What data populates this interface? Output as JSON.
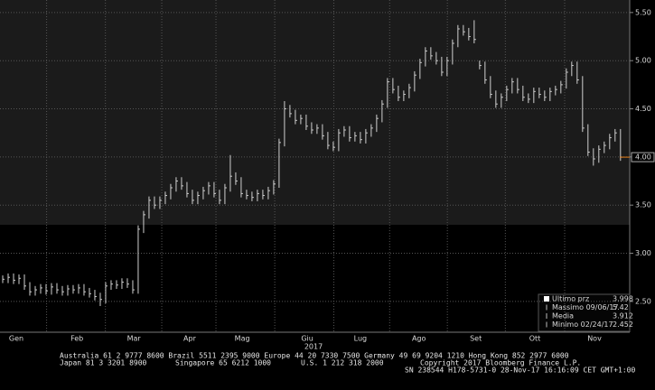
{
  "chart_data": {
    "type": "ohlc",
    "high": [
      2.77,
      2.79,
      2.79,
      2.78,
      2.78,
      2.7,
      2.66,
      2.68,
      2.68,
      2.69,
      2.69,
      2.66,
      2.67,
      2.67,
      2.68,
      2.68,
      2.64,
      2.62,
      2.59,
      2.7,
      2.72,
      2.72,
      2.74,
      2.74,
      2.72,
      3.29,
      3.44,
      3.59,
      3.59,
      3.59,
      3.64,
      3.72,
      3.79,
      3.79,
      3.74,
      3.66,
      3.64,
      3.69,
      3.74,
      3.74,
      3.66,
      3.72,
      4.02,
      3.84,
      3.79,
      3.66,
      3.64,
      3.66,
      3.66,
      3.69,
      3.76,
      4.19,
      4.58,
      4.54,
      4.49,
      4.44,
      4.44,
      4.36,
      4.34,
      4.34,
      4.26,
      4.16,
      4.29,
      4.32,
      4.32,
      4.26,
      4.26,
      4.29,
      4.34,
      4.44,
      4.59,
      4.82,
      4.82,
      4.74,
      4.69,
      4.76,
      4.89,
      5.02,
      5.14,
      5.14,
      5.09,
      5.04,
      5.04,
      5.22,
      5.37,
      5.37,
      5.34,
      5.42,
      5.0,
      4.99,
      4.84,
      4.69,
      4.66,
      4.74,
      4.82,
      4.82,
      4.74,
      4.66,
      4.72,
      4.72,
      4.69,
      4.72,
      4.74,
      4.79,
      4.92,
      4.99,
      4.99,
      4.84,
      4.34,
      4.09,
      4.12,
      4.16,
      4.24,
      4.29,
      4.29
    ],
    "low": [
      2.69,
      2.69,
      2.68,
      2.68,
      2.62,
      2.56,
      2.56,
      2.58,
      2.57,
      2.57,
      2.58,
      2.56,
      2.56,
      2.58,
      2.58,
      2.56,
      2.54,
      2.51,
      2.452,
      2.48,
      2.62,
      2.63,
      2.63,
      2.64,
      2.58,
      2.58,
      3.21,
      3.36,
      3.46,
      3.46,
      3.51,
      3.56,
      3.64,
      3.66,
      3.58,
      3.51,
      3.51,
      3.56,
      3.61,
      3.58,
      3.51,
      3.51,
      3.64,
      3.71,
      3.58,
      3.56,
      3.54,
      3.54,
      3.56,
      3.56,
      3.61,
      3.68,
      4.11,
      4.41,
      4.34,
      4.34,
      4.28,
      4.24,
      4.24,
      4.18,
      4.08,
      4.06,
      4.06,
      4.21,
      4.16,
      4.16,
      4.14,
      4.14,
      4.21,
      4.26,
      4.36,
      4.51,
      4.66,
      4.58,
      4.58,
      4.61,
      4.68,
      4.81,
      4.94,
      5.01,
      4.96,
      4.84,
      4.84,
      4.96,
      5.14,
      5.26,
      5.21,
      5.18,
      4.91,
      4.76,
      4.61,
      4.51,
      4.51,
      4.58,
      4.66,
      4.66,
      4.58,
      4.56,
      4.56,
      4.61,
      4.58,
      4.58,
      4.64,
      4.66,
      4.71,
      4.84,
      4.76,
      4.26,
      4.01,
      3.91,
      3.94,
      4.04,
      4.08,
      4.16,
      3.96
    ],
    "close": [
      2.73,
      2.75,
      2.72,
      2.74,
      2.66,
      2.6,
      2.62,
      2.64,
      2.61,
      2.65,
      2.62,
      2.6,
      2.63,
      2.62,
      2.64,
      2.6,
      2.58,
      2.55,
      2.52,
      2.66,
      2.68,
      2.67,
      2.7,
      2.68,
      2.62,
      3.25,
      3.4,
      3.55,
      3.5,
      3.55,
      3.6,
      3.68,
      3.75,
      3.7,
      3.62,
      3.55,
      3.6,
      3.65,
      3.7,
      3.62,
      3.55,
      3.68,
      3.8,
      3.75,
      3.62,
      3.6,
      3.58,
      3.62,
      3.6,
      3.65,
      3.72,
      4.15,
      4.5,
      4.45,
      4.38,
      4.4,
      4.32,
      4.28,
      4.3,
      4.22,
      4.12,
      4.1,
      4.25,
      4.28,
      4.2,
      4.22,
      4.18,
      4.25,
      4.3,
      4.4,
      4.55,
      4.78,
      4.7,
      4.62,
      4.65,
      4.72,
      4.85,
      4.98,
      5.1,
      5.05,
      5.0,
      4.88,
      5.0,
      5.18,
      5.33,
      5.3,
      5.25,
      5.22,
      4.95,
      4.8,
      4.65,
      4.55,
      4.62,
      4.7,
      4.78,
      4.7,
      4.62,
      4.6,
      4.68,
      4.65,
      4.62,
      4.68,
      4.7,
      4.75,
      4.88,
      4.95,
      4.8,
      4.3,
      4.05,
      3.98,
      4.08,
      4.12,
      4.2,
      4.25,
      3.998
    ],
    "color": "#d0d0d0",
    "xlim": [
      -0.5,
      115.7
    ],
    "xticks": [
      {
        "value": 2.5,
        "label": "Gen"
      },
      {
        "value": 13.7,
        "label": "Feb"
      },
      {
        "value": 24.2,
        "label": "Mar"
      },
      {
        "value": 34.5,
        "label": "Apr"
      },
      {
        "value": 44.2,
        "label": "Mag"
      },
      {
        "value": 56.2,
        "label": "Giu"
      },
      {
        "value": 66,
        "label": "Lug"
      },
      {
        "value": 76.8,
        "label": "Ago"
      },
      {
        "value": 87.3,
        "label": "Set"
      },
      {
        "value": 98.2,
        "label": "Ott"
      },
      {
        "value": 109.2,
        "label": "Nov"
      }
    ],
    "year_label": "2017",
    "ylim": [
      2.18,
      5.63
    ],
    "yticks": [
      {
        "value": 2.5,
        "label": "2.50"
      },
      {
        "value": 3,
        "label": "3.00"
      },
      {
        "value": 3.5,
        "label": "3.50"
      },
      {
        "value": 4,
        "label": "4.00"
      },
      {
        "value": 4.5,
        "label": "4.50"
      },
      {
        "value": 5,
        "label": "5.00"
      },
      {
        "value": 5.5,
        "label": "5.50"
      }
    ],
    "last_price": {
      "value": 3.998,
      "label": "4.00",
      "color": "#e8801a"
    },
    "grid": true,
    "legend": [
      {
        "label": "Ultimo prz",
        "value": 3.998
      },
      {
        "label": "Massimo 09/06/17",
        "value": 5.42
      },
      {
        "label": "Media",
        "value": 3.912
      },
      {
        "label": "Minimo 02/24/17",
        "value": 2.452
      }
    ]
  },
  "footer": {
    "line1": "Australia 61 2 9777 8600 Brazil 5511 2395 9000 Europe 44 20 7330 7500 Germany 49 69 9204 1210 Hong Kong 852 2977 6000",
    "line2_left": "Japan 81 3 3201 8900",
    "line2_mid1": "Singapore 65 6212 1000",
    "line2_mid2": "U.S. 1 212 318 2000",
    "line2_right": "Copyright 2017 Bloomberg Finance L.P.",
    "line3": "SN 238544 H178-5731-0 28-Nov-17 16:16:09 CET  GMT+1:00"
  }
}
